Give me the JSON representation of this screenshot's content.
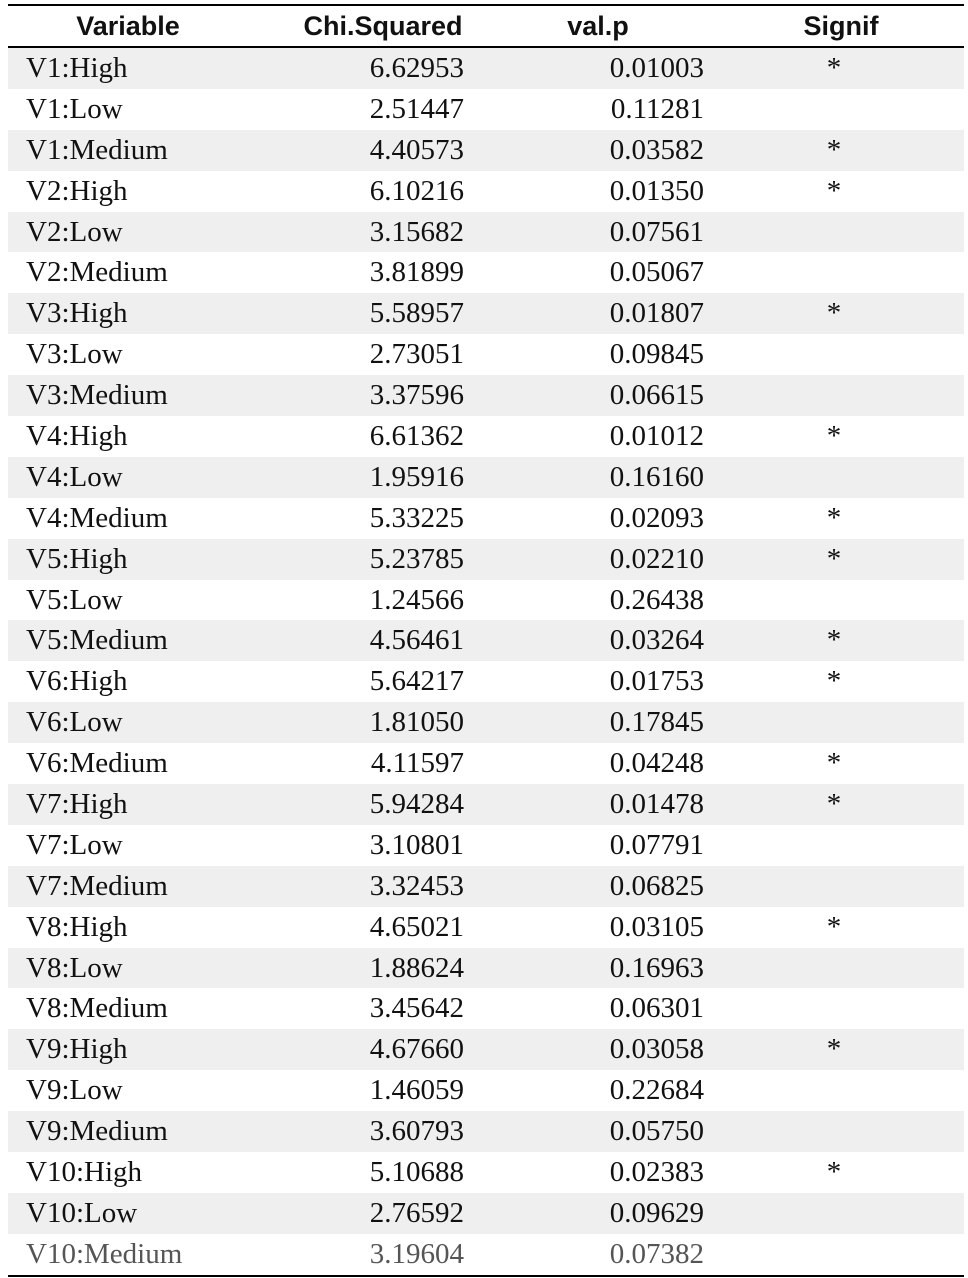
{
  "table": {
    "headers": {
      "variable": "Variable",
      "chi_squared": "Chi.Squared",
      "val_p": "val.p",
      "signif": "Signif"
    },
    "rows": [
      {
        "variable": "V1:High",
        "chi": "6.62953",
        "p": "0.01003",
        "signif": "*"
      },
      {
        "variable": "V1:Low",
        "chi": "2.51447",
        "p": "0.11281",
        "signif": ""
      },
      {
        "variable": "V1:Medium",
        "chi": "4.40573",
        "p": "0.03582",
        "signif": "*"
      },
      {
        "variable": "V2:High",
        "chi": "6.10216",
        "p": "0.01350",
        "signif": "*"
      },
      {
        "variable": "V2:Low",
        "chi": "3.15682",
        "p": "0.07561",
        "signif": ""
      },
      {
        "variable": "V2:Medium",
        "chi": "3.81899",
        "p": "0.05067",
        "signif": ""
      },
      {
        "variable": "V3:High",
        "chi": "5.58957",
        "p": "0.01807",
        "signif": "*"
      },
      {
        "variable": "V3:Low",
        "chi": "2.73051",
        "p": "0.09845",
        "signif": ""
      },
      {
        "variable": "V3:Medium",
        "chi": "3.37596",
        "p": "0.06615",
        "signif": ""
      },
      {
        "variable": "V4:High",
        "chi": "6.61362",
        "p": "0.01012",
        "signif": "*"
      },
      {
        "variable": "V4:Low",
        "chi": "1.95916",
        "p": "0.16160",
        "signif": ""
      },
      {
        "variable": "V4:Medium",
        "chi": "5.33225",
        "p": "0.02093",
        "signif": "*"
      },
      {
        "variable": "V5:High",
        "chi": "5.23785",
        "p": "0.02210",
        "signif": "*"
      },
      {
        "variable": "V5:Low",
        "chi": "1.24566",
        "p": "0.26438",
        "signif": ""
      },
      {
        "variable": "V5:Medium",
        "chi": "4.56461",
        "p": "0.03264",
        "signif": "*"
      },
      {
        "variable": "V6:High",
        "chi": "5.64217",
        "p": "0.01753",
        "signif": "*"
      },
      {
        "variable": "V6:Low",
        "chi": "1.81050",
        "p": "0.17845",
        "signif": ""
      },
      {
        "variable": "V6:Medium",
        "chi": "4.11597",
        "p": "0.04248",
        "signif": "*"
      },
      {
        "variable": "V7:High",
        "chi": "5.94284",
        "p": "0.01478",
        "signif": "*"
      },
      {
        "variable": "V7:Low",
        "chi": "3.10801",
        "p": "0.07791",
        "signif": ""
      },
      {
        "variable": "V7:Medium",
        "chi": "3.32453",
        "p": "0.06825",
        "signif": ""
      },
      {
        "variable": "V8:High",
        "chi": "4.65021",
        "p": "0.03105",
        "signif": "*"
      },
      {
        "variable": "V8:Low",
        "chi": "1.88624",
        "p": "0.16963",
        "signif": ""
      },
      {
        "variable": "V8:Medium",
        "chi": "3.45642",
        "p": "0.06301",
        "signif": ""
      },
      {
        "variable": "V9:High",
        "chi": "4.67660",
        "p": "0.03058",
        "signif": "*"
      },
      {
        "variable": "V9:Low",
        "chi": "1.46059",
        "p": "0.22684",
        "signif": ""
      },
      {
        "variable": "V9:Medium",
        "chi": "3.60793",
        "p": "0.05750",
        "signif": ""
      },
      {
        "variable": "V10:High",
        "chi": "5.10688",
        "p": "0.02383",
        "signif": "*"
      },
      {
        "variable": "V10:Low",
        "chi": "2.76592",
        "p": "0.09629",
        "signif": ""
      },
      {
        "variable": "V10:Medium",
        "chi": "3.19604",
        "p": "0.07382",
        "signif": ""
      }
    ]
  }
}
